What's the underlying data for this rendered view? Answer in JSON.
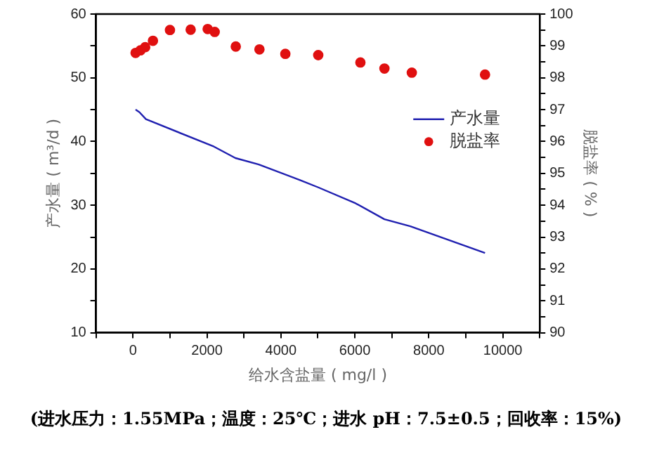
{
  "chart_data": {
    "type": "line",
    "xlabel": "给水含盐量 ( mg/l )",
    "ylabel": "产水量 ( m³/d )",
    "y2label": "脱盐率 ( % )",
    "xlim": [
      -1000,
      11000
    ],
    "xticks": [
      {
        "value": -1000,
        "label": null
      },
      0,
      {
        "value": 1000,
        "label": null
      },
      2000,
      {
        "value": 3000,
        "label": null
      },
      4000,
      {
        "value": 5000,
        "label": null
      },
      6000,
      {
        "value": 7000,
        "label": null
      },
      8000,
      {
        "value": 9000,
        "label": null
      },
      10000,
      {
        "value": 11000,
        "label": null
      }
    ],
    "ylim": [
      10,
      60
    ],
    "yticks": [
      10,
      {
        "value": 15,
        "label": null
      },
      20,
      {
        "value": 25,
        "label": null
      },
      30,
      {
        "value": 35,
        "label": null
      },
      40,
      {
        "value": 45,
        "label": null
      },
      50,
      {
        "value": 55,
        "label": null
      },
      60
    ],
    "y2lim": [
      90,
      100
    ],
    "y2ticks": [
      90,
      {
        "value": 90.5,
        "label": null
      },
      91,
      {
        "value": 91.5,
        "label": null
      },
      92,
      {
        "value": 92.5,
        "label": null
      },
      93,
      {
        "value": 93.5,
        "label": null
      },
      94,
      {
        "value": 94.5,
        "label": null
      },
      95,
      {
        "value": 95.5,
        "label": null
      },
      96,
      {
        "value": 96.5,
        "label": null
      },
      97,
      {
        "value": 97.5,
        "label": null
      },
      98,
      {
        "value": 98.5,
        "label": null
      },
      99,
      {
        "value": 99.5,
        "label": null
      },
      100
    ],
    "series": [
      {
        "name": "产水量",
        "color": "#2020b0",
        "x": [
          70,
          175,
          350,
          2190,
          2770,
          3400,
          4540,
          5010,
          6020,
          6800,
          7500,
          9520
        ],
        "values": [
          45.0,
          44.6,
          43.5,
          39.2,
          37.4,
          36.4,
          33.9,
          32.8,
          30.3,
          27.8,
          26.7,
          22.5
        ]
      },
      {
        "name": "脱盐率",
        "type": "scatter",
        "axis": "y2",
        "marker": "circle",
        "color": "#e01010",
        "x": [
          70,
          200,
          330,
          540,
          1000,
          1560,
          2020,
          2210,
          2780,
          3420,
          4120,
          5010,
          6150,
          6800,
          7540,
          9520
        ],
        "values": [
          98.78,
          98.86,
          98.96,
          99.16,
          99.5,
          99.51,
          99.53,
          99.44,
          98.98,
          98.89,
          98.75,
          98.71,
          98.48,
          98.29,
          98.16,
          98.1
        ]
      }
    ],
    "legend": "right",
    "grid": false,
    "annotations": [
      "(进水压力：1.55MPa；温度：25℃；进水 pH：7.5±0.5；回收率：15%)"
    ]
  }
}
